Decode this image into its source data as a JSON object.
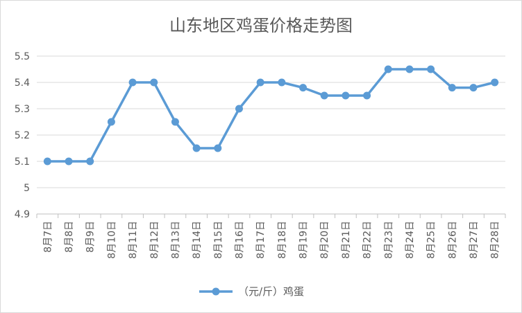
{
  "chart_data": {
    "type": "line",
    "title": "山东地区鸡蛋价格走势图",
    "categories": [
      "8月7日",
      "8月8日",
      "8月9日",
      "8月10日",
      "8月11日",
      "8月12日",
      "8月13日",
      "8月14日",
      "8月15日",
      "8月16日",
      "8月17日",
      "8月18日",
      "8月19日",
      "8月20日",
      "8月21日",
      "8月22日",
      "8月23日",
      "8月24日",
      "8月25日",
      "8月26日",
      "8月27日",
      "8月28日"
    ],
    "series": [
      {
        "name": "（元/斤）鸡蛋",
        "values": [
          5.1,
          5.1,
          5.1,
          5.25,
          5.4,
          5.4,
          5.25,
          5.15,
          5.15,
          5.3,
          5.4,
          5.4,
          5.38,
          5.35,
          5.35,
          5.35,
          5.45,
          5.45,
          5.45,
          5.38,
          5.38,
          5.4
        ]
      }
    ],
    "ylim": [
      4.9,
      5.5
    ],
    "yticks": [
      "4.9",
      "5",
      "5.1",
      "5.2",
      "5.3",
      "5.4",
      "5.5"
    ],
    "xlabel": "",
    "ylabel": "",
    "grid": true,
    "legend_position": "bottom",
    "colors": {
      "line": "#5b9bd5",
      "grid": "#d9d9d9",
      "text": "#595959"
    }
  }
}
